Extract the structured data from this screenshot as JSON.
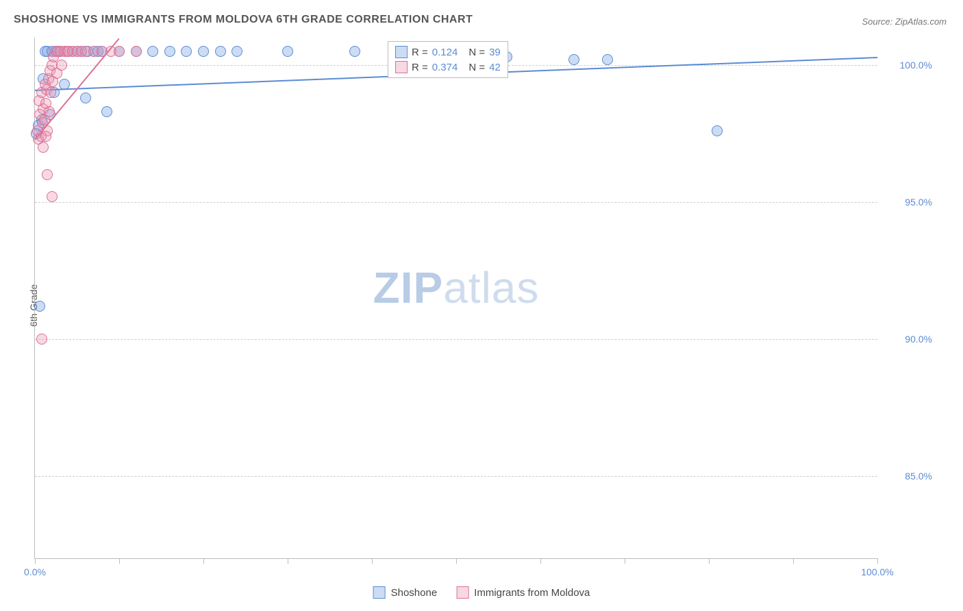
{
  "title": "SHOSHONE VS IMMIGRANTS FROM MOLDOVA 6TH GRADE CORRELATION CHART",
  "source": "Source: ZipAtlas.com",
  "y_axis_label": "6th Grade",
  "watermark": {
    "bold": "ZIP",
    "light": "atlas"
  },
  "chart": {
    "type": "scatter",
    "background_color": "#ffffff",
    "grid_color": "#cccccc",
    "axis_color": "#bbbbbb",
    "tick_label_color": "#5b8bd4",
    "xlim": [
      0,
      100
    ],
    "ylim": [
      82,
      101
    ],
    "ytick_values": [
      85.0,
      90.0,
      95.0,
      100.0
    ],
    "ytick_labels": [
      "85.0%",
      "90.0%",
      "95.0%",
      "100.0%"
    ],
    "xtick_values": [
      0,
      10,
      20,
      30,
      40,
      50,
      60,
      70,
      80,
      90,
      100
    ],
    "xtick_labels_shown": {
      "0": "0.0%",
      "100": "100.0%"
    },
    "point_radius": 8,
    "point_opacity": 0.45,
    "series": [
      {
        "name": "Shoshone",
        "color": "#6d9be0",
        "fill": "rgba(109,155,224,0.35)",
        "stroke": "#5b8bd4",
        "R": "0.124",
        "N": "39",
        "trend": {
          "x1": 0,
          "y1": 99.1,
          "x2": 100,
          "y2": 100.3
        },
        "points": [
          [
            0.2,
            97.5
          ],
          [
            0.4,
            97.8
          ],
          [
            0.6,
            91.2
          ],
          [
            0.8,
            98.0
          ],
          [
            1.0,
            99.5
          ],
          [
            1.2,
            100.5
          ],
          [
            1.5,
            100.5
          ],
          [
            1.8,
            98.2
          ],
          [
            2.0,
            100.5
          ],
          [
            2.3,
            99.0
          ],
          [
            2.6,
            100.5
          ],
          [
            3.0,
            100.5
          ],
          [
            3.5,
            99.3
          ],
          [
            4.0,
            100.5
          ],
          [
            4.5,
            100.5
          ],
          [
            5.0,
            100.5
          ],
          [
            5.5,
            100.5
          ],
          [
            6.0,
            98.8
          ],
          [
            6.3,
            100.5
          ],
          [
            7.0,
            100.5
          ],
          [
            7.5,
            100.5
          ],
          [
            8.0,
            100.5
          ],
          [
            8.5,
            98.3
          ],
          [
            10.0,
            100.5
          ],
          [
            12.0,
            100.5
          ],
          [
            14.0,
            100.5
          ],
          [
            16.0,
            100.5
          ],
          [
            18.0,
            100.5
          ],
          [
            20.0,
            100.5
          ],
          [
            22.0,
            100.5
          ],
          [
            24.0,
            100.5
          ],
          [
            30.0,
            100.5
          ],
          [
            38.0,
            100.5
          ],
          [
            47.0,
            100.3
          ],
          [
            55.0,
            100.3
          ],
          [
            64.0,
            100.2
          ],
          [
            68.0,
            100.2
          ],
          [
            81.0,
            97.6
          ],
          [
            56.0,
            100.3
          ]
        ]
      },
      {
        "name": "Immigrants from Moldova",
        "color": "#e791b0",
        "fill": "rgba(231,145,176,0.35)",
        "stroke": "#dd6f95",
        "R": "0.374",
        "N": "42",
        "trend": {
          "x1": 0,
          "y1": 97.3,
          "x2": 10,
          "y2": 101.0
        },
        "points": [
          [
            0.3,
            97.6
          ],
          [
            0.4,
            97.3
          ],
          [
            0.5,
            98.7
          ],
          [
            0.6,
            98.2
          ],
          [
            0.7,
            97.4
          ],
          [
            0.8,
            99.0
          ],
          [
            0.9,
            97.9
          ],
          [
            1.0,
            98.4
          ],
          [
            1.1,
            98.0
          ],
          [
            1.2,
            99.3
          ],
          [
            1.3,
            98.6
          ],
          [
            1.4,
            99.1
          ],
          [
            1.5,
            97.6
          ],
          [
            1.6,
            99.5
          ],
          [
            1.7,
            98.3
          ],
          [
            1.8,
            99.8
          ],
          [
            1.9,
            99.0
          ],
          [
            2.0,
            100.0
          ],
          [
            2.1,
            99.4
          ],
          [
            2.2,
            100.3
          ],
          [
            2.4,
            100.5
          ],
          [
            2.6,
            99.7
          ],
          [
            2.8,
            100.5
          ],
          [
            3.0,
            100.5
          ],
          [
            3.2,
            100.0
          ],
          [
            3.5,
            100.5
          ],
          [
            3.8,
            100.5
          ],
          [
            4.0,
            100.5
          ],
          [
            4.5,
            100.5
          ],
          [
            5.0,
            100.5
          ],
          [
            5.5,
            100.5
          ],
          [
            6.0,
            100.5
          ],
          [
            7.0,
            100.5
          ],
          [
            8.0,
            100.5
          ],
          [
            9.0,
            100.5
          ],
          [
            10.0,
            100.5
          ],
          [
            12.0,
            100.5
          ],
          [
            1.5,
            96.0
          ],
          [
            2.0,
            95.2
          ],
          [
            0.8,
            90.0
          ],
          [
            1.0,
            97.0
          ],
          [
            1.3,
            97.4
          ]
        ]
      }
    ],
    "corr_box": {
      "label_R": "R =",
      "label_N": "N =",
      "value_color": "#5b8bd4",
      "text_color": "#444444"
    },
    "legend_bottom": [
      {
        "label": "Shoshone",
        "fill": "rgba(109,155,224,0.35)",
        "stroke": "#5b8bd4"
      },
      {
        "label": "Immigrants from Moldova",
        "fill": "rgba(231,145,176,0.35)",
        "stroke": "#dd6f95"
      }
    ]
  }
}
